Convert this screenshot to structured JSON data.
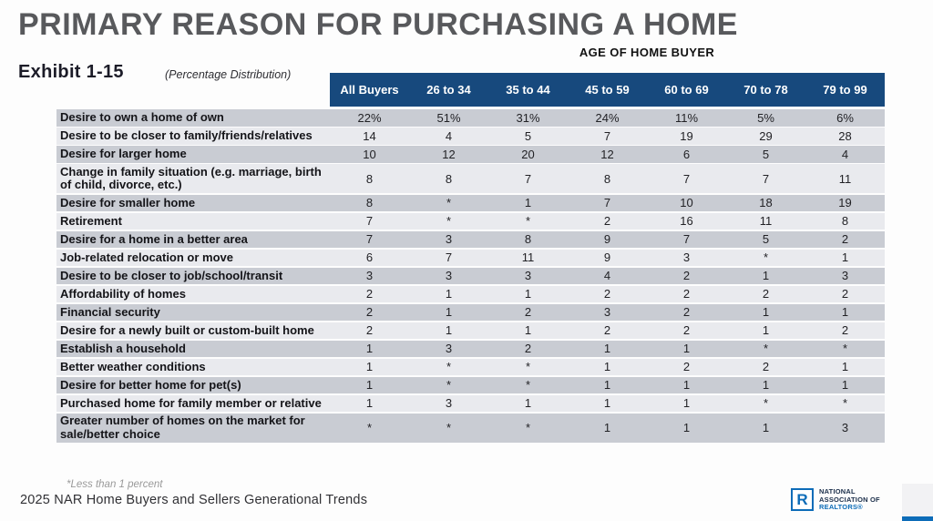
{
  "header": {
    "title": "PRIMARY REASON FOR PURCHASING A HOME",
    "exhibit": "Exhibit 1-15",
    "subtitle": "(Percentage Distribution)",
    "group_label": "AGE OF HOME BUYER"
  },
  "chart_data": {
    "type": "table",
    "title": "PRIMARY REASON FOR PURCHASING A HOME",
    "columns": [
      "All Buyers",
      "26 to 34",
      "35 to 44",
      "45 to 59",
      "60 to 69",
      "70 to 78",
      "79 to 99"
    ],
    "rows": [
      {
        "label": "Desire to own a home of own",
        "values": [
          "22%",
          "51%",
          "31%",
          "24%",
          "11%",
          "5%",
          "6%"
        ]
      },
      {
        "label": "Desire to be closer to family/friends/relatives",
        "values": [
          "14",
          "4",
          "5",
          "7",
          "19",
          "29",
          "28"
        ]
      },
      {
        "label": "Desire for larger home",
        "values": [
          "10",
          "12",
          "20",
          "12",
          "6",
          "5",
          "4"
        ]
      },
      {
        "label": "Change in family situation (e.g. marriage, birth of child, divorce, etc.)",
        "values": [
          "8",
          "8",
          "7",
          "8",
          "7",
          "7",
          "11"
        ]
      },
      {
        "label": "Desire for smaller home",
        "values": [
          "8",
          "*",
          "1",
          "7",
          "10",
          "18",
          "19"
        ]
      },
      {
        "label": "Retirement",
        "values": [
          "7",
          "*",
          "*",
          "2",
          "16",
          "11",
          "8"
        ]
      },
      {
        "label": "Desire for a home in a better area",
        "values": [
          "7",
          "3",
          "8",
          "9",
          "7",
          "5",
          "2"
        ]
      },
      {
        "label": "Job-related relocation or move",
        "values": [
          "6",
          "7",
          "11",
          "9",
          "3",
          "*",
          "1"
        ]
      },
      {
        "label": "Desire to be closer to job/school/transit",
        "values": [
          "3",
          "3",
          "3",
          "4",
          "2",
          "1",
          "3"
        ]
      },
      {
        "label": "Affordability of homes",
        "values": [
          "2",
          "1",
          "1",
          "2",
          "2",
          "2",
          "2"
        ]
      },
      {
        "label": "Financial security",
        "values": [
          "2",
          "1",
          "2",
          "3",
          "2",
          "1",
          "1"
        ]
      },
      {
        "label": "Desire for a newly built or custom-built home",
        "values": [
          "2",
          "1",
          "1",
          "2",
          "2",
          "1",
          "2"
        ]
      },
      {
        "label": "Establish a household",
        "values": [
          "1",
          "3",
          "2",
          "1",
          "1",
          "*",
          "*"
        ]
      },
      {
        "label": "Better weather conditions",
        "values": [
          "1",
          "*",
          "*",
          "1",
          "2",
          "2",
          "1"
        ]
      },
      {
        "label": "Desire for better home for pet(s)",
        "values": [
          "1",
          "*",
          "*",
          "1",
          "1",
          "1",
          "1"
        ]
      },
      {
        "label": "Purchased home for family member or relative",
        "values": [
          "1",
          "3",
          "1",
          "1",
          "1",
          "*",
          "*"
        ]
      },
      {
        "label": "Greater number of homes on the market for sale/better choice",
        "values": [
          "*",
          "*",
          "*",
          "1",
          "1",
          "1",
          "3"
        ]
      }
    ]
  },
  "footer": {
    "footnote": "*Less than 1 percent",
    "source": "2025 NAR Home Buyers and Sellers Generational Trends",
    "logo": {
      "letter": "R",
      "line1": "NATIONAL",
      "line2": "ASSOCIATION OF",
      "line3": "REALTORS®"
    }
  },
  "colors": {
    "header_bg": "#17497d",
    "row_odd": "#c9ccd3",
    "row_even": "#e9eaee",
    "brand_blue": "#0d6cb8",
    "title_gray": "#58595c"
  }
}
